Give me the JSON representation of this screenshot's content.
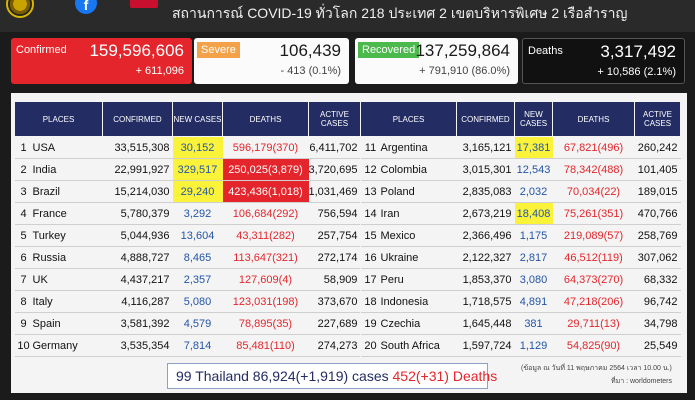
{
  "header": {
    "title": "สถานการณ์ COVID-19 ทั่วโลก 218 ประเทศ 2 เขตบริหารพิเศษ 2 เรือสำราญ",
    "facebook_letter": "f"
  },
  "summary": {
    "confirmed": {
      "label": "Confirmed",
      "value": "159,596,606",
      "change": "+ 611,096"
    },
    "severe": {
      "label": "Severe",
      "value": "106,439",
      "change": "- 413 (0.1%)"
    },
    "recovered": {
      "label": "Recovered",
      "value": "137,259,864",
      "change": "+ 791,910 (86.0%)"
    },
    "deaths": {
      "label": "Deaths",
      "value": "3,317,492",
      "change": "+ 10,586 (2.1%)"
    }
  },
  "table": {
    "headers": [
      "PLACES",
      "CONFIRMED",
      "NEW CASES",
      "DEATHS",
      "ACTIVE CASES"
    ],
    "left_rows": [
      {
        "rank": "1",
        "place": "USA",
        "confirmed": "33,515,308",
        "new": "30,152",
        "deaths": "596,179(370)",
        "active": "6,411,702",
        "new_hl": "y",
        "deaths_hl": ""
      },
      {
        "rank": "2",
        "place": "India",
        "confirmed": "22,991,927",
        "new": "329,517",
        "deaths": "250,025(3,879)",
        "active": "3,720,695",
        "new_hl": "y",
        "deaths_hl": "r"
      },
      {
        "rank": "3",
        "place": "Brazil",
        "confirmed": "15,214,030",
        "new": "29,240",
        "deaths": "423,436(1,018)",
        "active": "1,031,469",
        "new_hl": "y",
        "deaths_hl": "r"
      },
      {
        "rank": "4",
        "place": "France",
        "confirmed": "5,780,379",
        "new": "3,292",
        "deaths": "106,684(292)",
        "active": "756,594",
        "new_hl": "",
        "deaths_hl": ""
      },
      {
        "rank": "5",
        "place": "Turkey",
        "confirmed": "5,044,936",
        "new": "13,604",
        "deaths": "43,311(282)",
        "active": "257,754",
        "new_hl": "",
        "deaths_hl": ""
      },
      {
        "rank": "6",
        "place": "Russia",
        "confirmed": "4,888,727",
        "new": "8,465",
        "deaths": "113,647(321)",
        "active": "272,174",
        "new_hl": "",
        "deaths_hl": ""
      },
      {
        "rank": "7",
        "place": "UK",
        "confirmed": "4,437,217",
        "new": "2,357",
        "deaths": "127,609(4)",
        "active": "58,909",
        "new_hl": "",
        "deaths_hl": ""
      },
      {
        "rank": "8",
        "place": "Italy",
        "confirmed": "4,116,287",
        "new": "5,080",
        "deaths": "123,031(198)",
        "active": "373,670",
        "new_hl": "",
        "deaths_hl": ""
      },
      {
        "rank": "9",
        "place": "Spain",
        "confirmed": "3,581,392",
        "new": "4,579",
        "deaths": "78,895(35)",
        "active": "227,689",
        "new_hl": "",
        "deaths_hl": ""
      },
      {
        "rank": "10",
        "place": "Germany",
        "confirmed": "3,535,354",
        "new": "7,814",
        "deaths": "85,481(110)",
        "active": "274,273",
        "new_hl": "",
        "deaths_hl": ""
      }
    ],
    "right_rows": [
      {
        "rank": "11",
        "place": "Argentina",
        "confirmed": "3,165,121",
        "new": "17,381",
        "deaths": "67,821(496)",
        "active": "260,242",
        "new_hl": "y",
        "deaths_hl": ""
      },
      {
        "rank": "12",
        "place": "Colombia",
        "confirmed": "3,015,301",
        "new": "12,543",
        "deaths": "78,342(488)",
        "active": "101,405",
        "new_hl": "",
        "deaths_hl": ""
      },
      {
        "rank": "13",
        "place": "Poland",
        "confirmed": "2,835,083",
        "new": "2,032",
        "deaths": "70,034(22)",
        "active": "189,015",
        "new_hl": "",
        "deaths_hl": ""
      },
      {
        "rank": "14",
        "place": "Iran",
        "confirmed": "2,673,219",
        "new": "18,408",
        "deaths": "75,261(351)",
        "active": "470,766",
        "new_hl": "y",
        "deaths_hl": ""
      },
      {
        "rank": "15",
        "place": "Mexico",
        "confirmed": "2,366,496",
        "new": "1,175",
        "deaths": "219,089(57)",
        "active": "258,769",
        "new_hl": "",
        "deaths_hl": ""
      },
      {
        "rank": "16",
        "place": "Ukraine",
        "confirmed": "2,122,327",
        "new": "2,817",
        "deaths": "46,512(119)",
        "active": "307,062",
        "new_hl": "",
        "deaths_hl": ""
      },
      {
        "rank": "17",
        "place": "Peru",
        "confirmed": "1,853,370",
        "new": "3,080",
        "deaths": "64,373(270)",
        "active": "68,332",
        "new_hl": "",
        "deaths_hl": ""
      },
      {
        "rank": "18",
        "place": "Indonesia",
        "confirmed": "1,718,575",
        "new": "4,891",
        "deaths": "47,218(206)",
        "active": "96,742",
        "new_hl": "",
        "deaths_hl": ""
      },
      {
        "rank": "19",
        "place": "Czechia",
        "confirmed": "1,645,448",
        "new": "381",
        "deaths": "29,711(13)",
        "active": "34,798",
        "new_hl": "",
        "deaths_hl": ""
      },
      {
        "rank": "20",
        "place": "South Africa",
        "confirmed": "1,597,724",
        "new": "1,129",
        "deaths": "54,825(90)",
        "active": "25,549",
        "new_hl": "",
        "deaths_hl": ""
      }
    ]
  },
  "thailand": {
    "prefix": "99 Thailand 86,924(+1,919) cases",
    "deaths": "452(+31) Deaths"
  },
  "footnote": {
    "line1": "(ข้อมูล ณ วันที่ 11 พฤษภาคม 2564 เวลา 10.00 น.)",
    "source": "ที่มา : worldometers"
  }
}
